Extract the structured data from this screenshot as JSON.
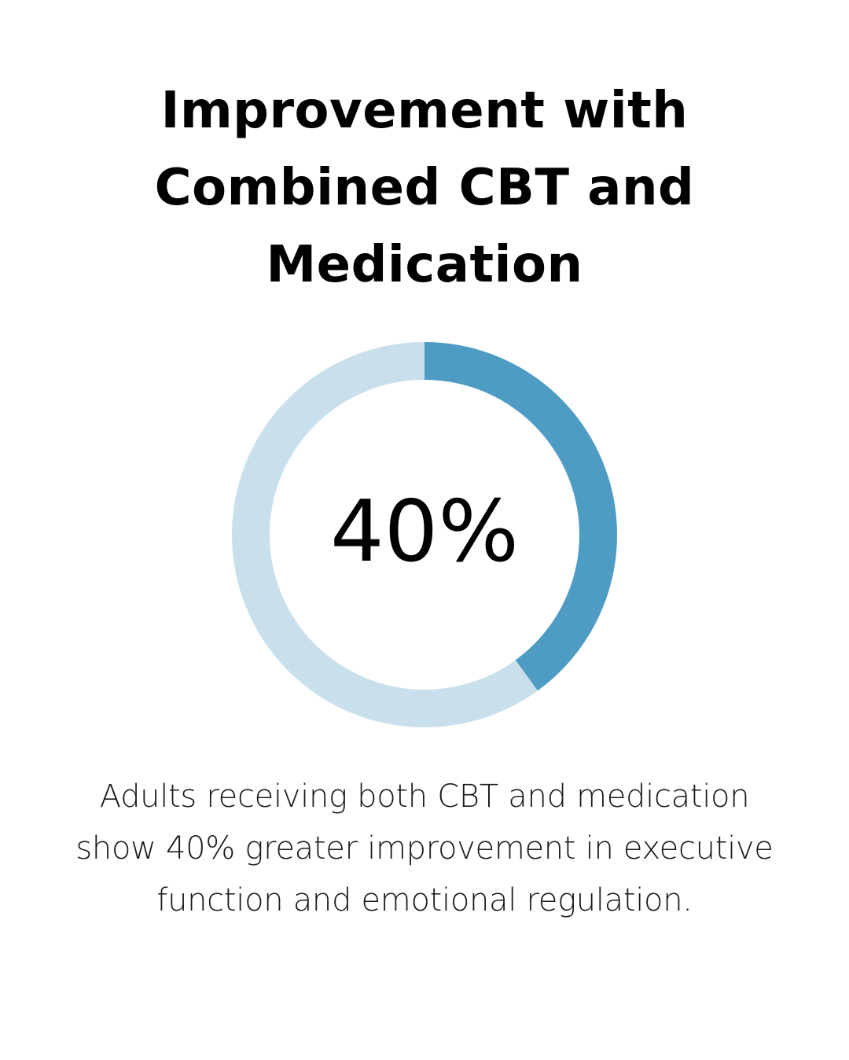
{
  "title_lines": [
    "Improvement with",
    "Combined CBT and",
    "Medication"
  ],
  "caption_lines": [
    "Adults receiving both CBT and medication",
    "show 40% greater improvement in executive",
    "function and emotional regulation."
  ],
  "chart_data": {
    "type": "pie",
    "variant": "donut",
    "value": 40,
    "max": 100,
    "label": "40%",
    "colors": {
      "filled": "#4e9cc4",
      "track": "#c9e0ec"
    }
  }
}
